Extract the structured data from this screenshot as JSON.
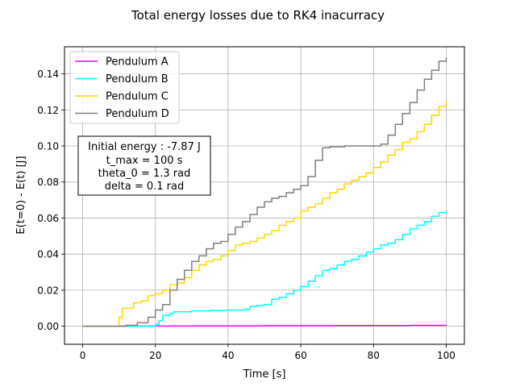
{
  "chart_data": {
    "type": "line",
    "title": "Total energy losses due to RK4 inacurracy",
    "xlabel": "Time [s]",
    "ylabel": "E(t=0) - E(t) [J]",
    "xlim": [
      -5,
      105
    ],
    "ylim": [
      -0.01,
      0.155
    ],
    "xticks": [
      0,
      20,
      40,
      60,
      80,
      100
    ],
    "yticks": [
      0.0,
      0.02,
      0.04,
      0.06,
      0.08,
      0.1,
      0.12,
      0.14
    ],
    "xtick_labels": [
      "0",
      "20",
      "40",
      "60",
      "80",
      "100"
    ],
    "ytick_labels": [
      "0.00",
      "0.02",
      "0.04",
      "0.06",
      "0.08",
      "0.10",
      "0.12",
      "0.14"
    ],
    "grid": true,
    "legend_position": "top-left",
    "annotation": {
      "lines": [
        "Initial energy : -7.87 J",
        "t_max = 100 s",
        "theta_0 = 1.3 rad",
        "delta = 0.1 rad"
      ]
    },
    "series": [
      {
        "name": "Pendulum A",
        "color": "#ff00ff",
        "x": [
          0,
          10,
          20,
          30,
          40,
          50,
          60,
          70,
          80,
          90,
          100
        ],
        "y": [
          0.0,
          0.0001,
          0.0001,
          0.0002,
          0.0002,
          0.0003,
          0.0003,
          0.0004,
          0.0004,
          0.0005,
          0.0005
        ]
      },
      {
        "name": "Pendulum B",
        "color": "#00ffff",
        "x": [
          0,
          15,
          20,
          21,
          22,
          24,
          25,
          30,
          35,
          40,
          45,
          46,
          48,
          50,
          52,
          54,
          56,
          58,
          60,
          62,
          64,
          66,
          68,
          70,
          72,
          74,
          76,
          78,
          80,
          82,
          84,
          86,
          88,
          90,
          92,
          94,
          96,
          98,
          100
        ],
        "y": [
          0.0,
          0.0,
          0.001,
          0.003,
          0.006,
          0.007,
          0.008,
          0.0085,
          0.0088,
          0.009,
          0.0095,
          0.011,
          0.0115,
          0.012,
          0.015,
          0.016,
          0.018,
          0.02,
          0.022,
          0.025,
          0.028,
          0.031,
          0.032,
          0.034,
          0.036,
          0.037,
          0.039,
          0.041,
          0.043,
          0.045,
          0.046,
          0.048,
          0.051,
          0.054,
          0.056,
          0.058,
          0.061,
          0.063,
          0.064
        ]
      },
      {
        "name": "Pendulum C",
        "color": "#ffd700",
        "x": [
          0,
          9,
          10,
          11,
          14,
          16,
          18,
          20,
          22,
          24,
          26,
          28,
          30,
          32,
          34,
          36,
          38,
          40,
          42,
          44,
          46,
          48,
          50,
          52,
          54,
          56,
          58,
          60,
          62,
          64,
          66,
          68,
          70,
          72,
          74,
          76,
          78,
          80,
          82,
          84,
          86,
          88,
          90,
          92,
          94,
          96,
          98,
          100
        ],
        "y": [
          0.0,
          0.0,
          0.005,
          0.01,
          0.013,
          0.014,
          0.017,
          0.018,
          0.02,
          0.023,
          0.024,
          0.027,
          0.031,
          0.034,
          0.036,
          0.037,
          0.039,
          0.042,
          0.045,
          0.046,
          0.047,
          0.049,
          0.051,
          0.053,
          0.056,
          0.058,
          0.06,
          0.064,
          0.066,
          0.068,
          0.071,
          0.074,
          0.076,
          0.079,
          0.081,
          0.083,
          0.085,
          0.088,
          0.091,
          0.095,
          0.098,
          0.102,
          0.104,
          0.108,
          0.112,
          0.117,
          0.122,
          0.125
        ]
      },
      {
        "name": "Pendulum D",
        "color": "#808080",
        "x": [
          0,
          12,
          15,
          18,
          20,
          22,
          24,
          26,
          28,
          30,
          32,
          34,
          36,
          38,
          40,
          42,
          44,
          46,
          48,
          50,
          52,
          54,
          56,
          58,
          60,
          62,
          64,
          66,
          68,
          70,
          72,
          74,
          76,
          78,
          80,
          82,
          84,
          86,
          88,
          90,
          92,
          94,
          96,
          98,
          100
        ],
        "y": [
          0.0,
          0.0005,
          0.002,
          0.005,
          0.009,
          0.012,
          0.02,
          0.026,
          0.031,
          0.036,
          0.039,
          0.043,
          0.046,
          0.047,
          0.051,
          0.055,
          0.058,
          0.062,
          0.066,
          0.069,
          0.071,
          0.072,
          0.074,
          0.076,
          0.078,
          0.083,
          0.092,
          0.099,
          0.0995,
          0.0995,
          0.1,
          0.1,
          0.1,
          0.1,
          0.1,
          0.101,
          0.106,
          0.112,
          0.118,
          0.124,
          0.131,
          0.137,
          0.142,
          0.147,
          0.149
        ]
      }
    ]
  }
}
